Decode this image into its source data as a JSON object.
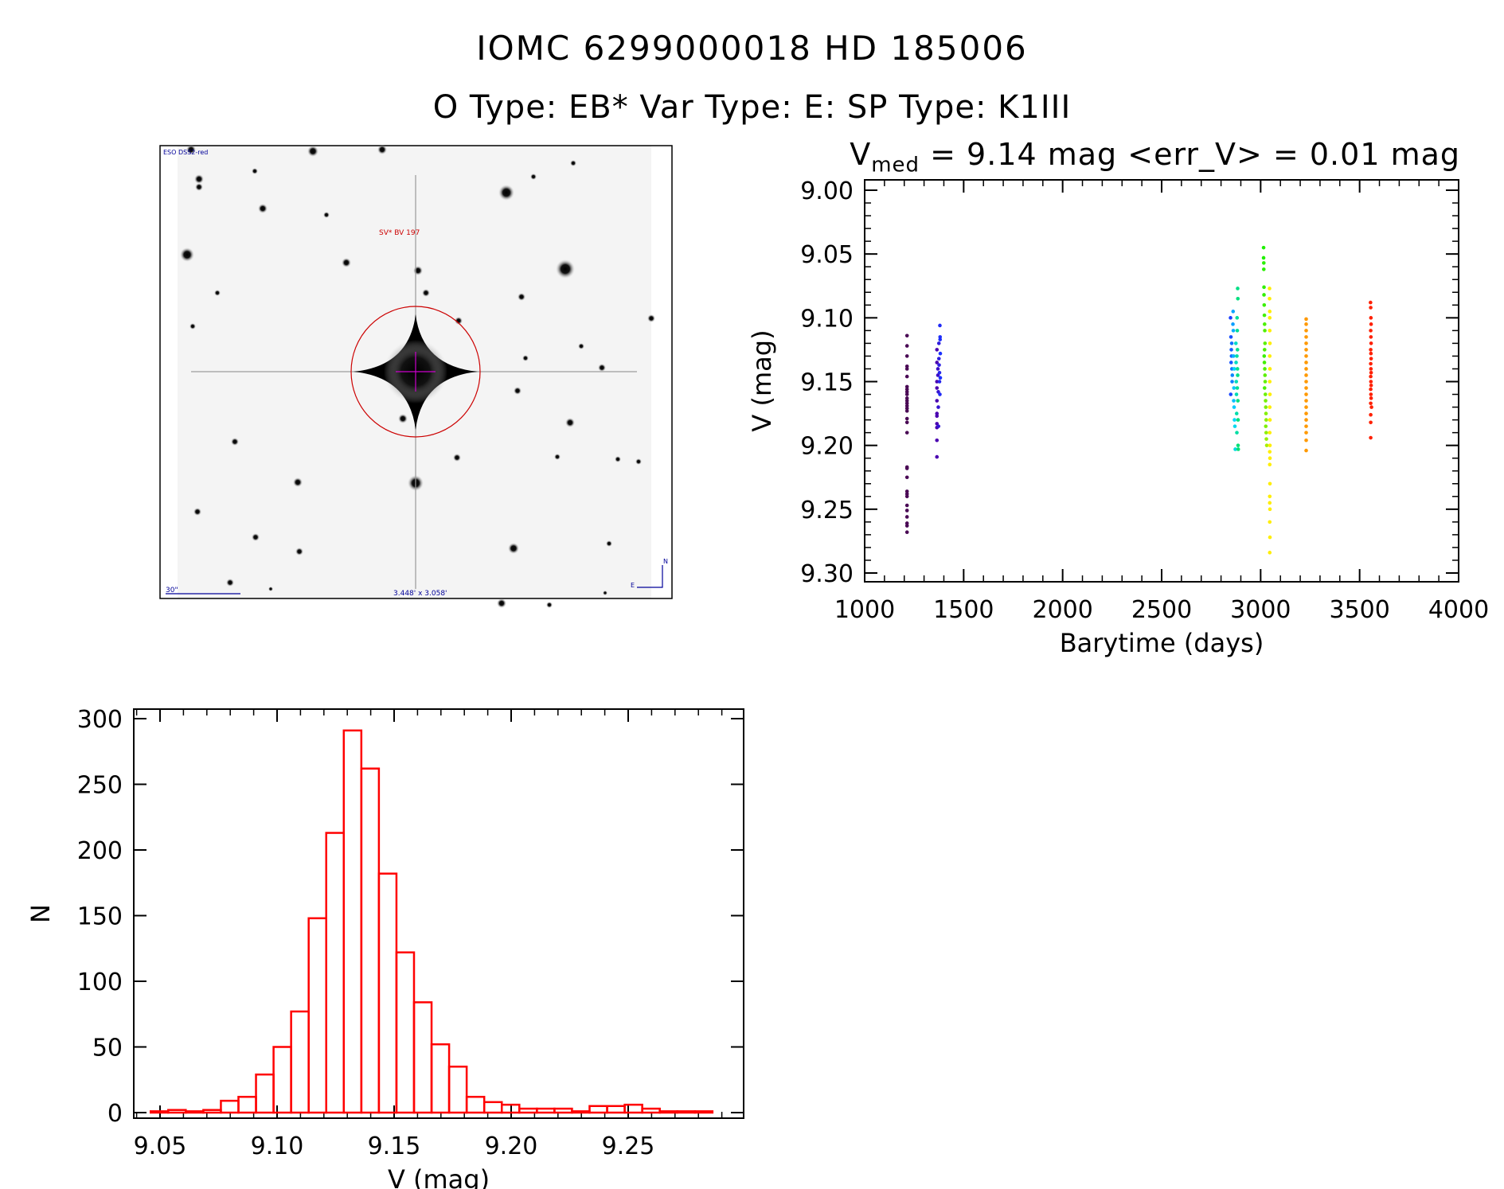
{
  "header": {
    "title": "IOMC 6299000018    HD 185006",
    "subtitle": "O Type: EB*  Var Type: E:   SP Type: K1III",
    "vmed_prefix": "V",
    "vmed_sub": "med",
    "vmed_rest": " = 9.14 mag <err_V> = 0.01 mag"
  },
  "image": {
    "survey_label": "ESO DSS2-red",
    "object_label": "SV* BV 197",
    "scale_label": "30\"",
    "size_label": "3.448' x 3.058'",
    "north_label": "N",
    "east_label": "E",
    "colors": {
      "marker": "#cc0000",
      "crosshair": "#cc00cc",
      "annotation": "#000099"
    }
  },
  "chart_data": [
    {
      "type": "scatter",
      "title": "",
      "xlabel": "Barytime (days)",
      "ylabel": "V (mag)",
      "xlim": [
        1000,
        4000
      ],
      "ylim": [
        9.3,
        9.0
      ],
      "y_inverted": true,
      "xticks": [
        1000,
        1500,
        2000,
        2500,
        3000,
        3500,
        4000
      ],
      "yticks": [
        "9.00",
        "9.05",
        "9.10",
        "9.15",
        "9.20",
        "9.25",
        "9.30"
      ],
      "grid": false,
      "series": [
        {
          "colors": [
            "#4a0a55",
            "#4a0a55"
          ],
          "points": [
            [
              1214,
              9.114
            ],
            [
              1214,
              9.122
            ],
            [
              1214,
              9.13
            ],
            [
              1214,
              9.138
            ],
            [
              1214,
              9.14
            ],
            [
              1214,
              9.146
            ],
            [
              1214,
              9.154
            ],
            [
              1214,
              9.156
            ],
            [
              1214,
              9.158
            ],
            [
              1214,
              9.16
            ],
            [
              1214,
              9.163
            ],
            [
              1214,
              9.165
            ],
            [
              1214,
              9.167
            ],
            [
              1214,
              9.169
            ],
            [
              1214,
              9.171
            ],
            [
              1214,
              9.173
            ],
            [
              1214,
              9.179
            ],
            [
              1214,
              9.182
            ],
            [
              1214,
              9.19
            ],
            [
              1214,
              9.217
            ],
            [
              1214,
              9.218
            ],
            [
              1214,
              9.225
            ],
            [
              1214,
              9.236
            ],
            [
              1214,
              9.238
            ],
            [
              1214,
              9.24
            ],
            [
              1214,
              9.247
            ],
            [
              1214,
              9.251
            ],
            [
              1214,
              9.256
            ],
            [
              1214,
              9.261
            ],
            [
              1214,
              9.263
            ],
            [
              1214,
              9.268
            ]
          ]
        },
        {
          "colors": [
            "#4a00b0",
            "#1a30ff"
          ],
          "points": [
            [
              1365,
              9.125
            ],
            [
              1365,
              9.135
            ],
            [
              1365,
              9.15
            ],
            [
              1365,
              9.155
            ],
            [
              1365,
              9.165
            ],
            [
              1365,
              9.175
            ],
            [
              1365,
              9.177
            ],
            [
              1365,
              9.183
            ],
            [
              1365,
              9.186
            ],
            [
              1365,
              9.196
            ],
            [
              1365,
              9.209
            ],
            [
              1370,
              9.14
            ],
            [
              1370,
              9.145
            ],
            [
              1372,
              9.158
            ],
            [
              1372,
              9.17
            ],
            [
              1373,
              9.185
            ],
            [
              1375,
              9.12
            ],
            [
              1375,
              9.132
            ],
            [
              1376,
              9.137
            ],
            [
              1378,
              9.143
            ],
            [
              1378,
              9.15
            ],
            [
              1380,
              9.16
            ],
            [
              1380,
              9.106
            ],
            [
              1381,
              9.115
            ],
            [
              1381,
              9.117
            ],
            [
              1382,
              9.128
            ],
            [
              1382,
              9.147
            ]
          ]
        },
        {
          "colors": [
            "#1a40ff",
            "#00d8ff",
            "#00e070"
          ],
          "points": [
            [
              2848,
              9.1
            ],
            [
              2849,
              9.16
            ],
            [
              2850,
              9.115
            ],
            [
              2851,
              9.135
            ],
            [
              2852,
              9.125
            ],
            [
              2853,
              9.13
            ],
            [
              2854,
              9.12
            ],
            [
              2855,
              9.14
            ],
            [
              2856,
              9.15
            ],
            [
              2857,
              9.145
            ],
            [
              2860,
              9.105
            ],
            [
              2861,
              9.095
            ],
            [
              2862,
              9.11
            ],
            [
              2863,
              9.13
            ],
            [
              2864,
              9.165
            ],
            [
              2865,
              9.155
            ],
            [
              2866,
              9.17
            ],
            [
              2867,
              9.14
            ],
            [
              2868,
              9.18
            ],
            [
              2870,
              9.185
            ],
            [
              2872,
              9.203
            ],
            [
              2875,
              9.12
            ],
            [
              2876,
              9.135
            ],
            [
              2877,
              9.15
            ],
            [
              2878,
              9.16
            ],
            [
              2879,
              9.175
            ],
            [
              2880,
              9.19
            ],
            [
              2880,
              9.13
            ],
            [
              2881,
              9.1
            ],
            [
              2882,
              9.11
            ],
            [
              2882,
              9.155
            ],
            [
              2883,
              9.125
            ],
            [
              2883,
              9.14
            ],
            [
              2884,
              9.145
            ],
            [
              2884,
              9.077
            ],
            [
              2885,
              9.165
            ],
            [
              2885,
              9.085
            ],
            [
              2886,
              9.18
            ],
            [
              2886,
              9.2
            ],
            [
              2887,
              9.203
            ]
          ]
        },
        {
          "colors": [
            "#20f000",
            "#a8f000"
          ],
          "points": [
            [
              3015,
              9.045
            ],
            [
              3015,
              9.053
            ],
            [
              3016,
              9.057
            ],
            [
              3016,
              9.062
            ],
            [
              3017,
              9.076
            ],
            [
              3017,
              9.082
            ],
            [
              3018,
              9.09
            ],
            [
              3019,
              9.098
            ],
            [
              3020,
              9.105
            ],
            [
              3021,
              9.11
            ],
            [
              3022,
              9.12
            ],
            [
              3020,
              9.125
            ],
            [
              3018,
              9.13
            ],
            [
              3019,
              9.135
            ],
            [
              3021,
              9.14
            ],
            [
              3022,
              9.145
            ],
            [
              3023,
              9.15
            ],
            [
              3020,
              9.155
            ],
            [
              3024,
              9.16
            ],
            [
              3025,
              9.165
            ],
            [
              3026,
              9.17
            ],
            [
              3027,
              9.175
            ],
            [
              3028,
              9.18
            ],
            [
              3026,
              9.185
            ],
            [
              3028,
              9.19
            ],
            [
              3029,
              9.195
            ],
            [
              3031,
              9.2
            ]
          ]
        },
        {
          "colors": [
            "#ffee00",
            "#ffee00"
          ],
          "points": [
            [
              3045,
              9.077
            ],
            [
              3045,
              9.085
            ],
            [
              3046,
              9.095
            ],
            [
              3046,
              9.1
            ],
            [
              3046,
              9.11
            ],
            [
              3047,
              9.12
            ],
            [
              3046,
              9.13
            ],
            [
              3047,
              9.14
            ],
            [
              3046,
              9.15
            ],
            [
              3047,
              9.16
            ],
            [
              3046,
              9.17
            ],
            [
              3047,
              9.18
            ],
            [
              3046,
              9.19
            ],
            [
              3047,
              9.2
            ],
            [
              3046,
              9.205
            ],
            [
              3047,
              9.21
            ],
            [
              3046,
              9.215
            ],
            [
              3047,
              9.23
            ],
            [
              3046,
              9.24
            ],
            [
              3046,
              9.245
            ],
            [
              3047,
              9.25
            ],
            [
              3046,
              9.26
            ],
            [
              3047,
              9.272
            ],
            [
              3046,
              9.284
            ]
          ]
        },
        {
          "colors": [
            "#ff9900",
            "#ff9900"
          ],
          "points": [
            [
              3230,
              9.101
            ],
            [
              3230,
              9.105
            ],
            [
              3230,
              9.11
            ],
            [
              3230,
              9.115
            ],
            [
              3230,
              9.12
            ],
            [
              3230,
              9.125
            ],
            [
              3230,
              9.13
            ],
            [
              3230,
              9.135
            ],
            [
              3230,
              9.14
            ],
            [
              3230,
              9.145
            ],
            [
              3230,
              9.15
            ],
            [
              3230,
              9.155
            ],
            [
              3230,
              9.16
            ],
            [
              3230,
              9.165
            ],
            [
              3230,
              9.17
            ],
            [
              3230,
              9.175
            ],
            [
              3230,
              9.18
            ],
            [
              3230,
              9.185
            ],
            [
              3230,
              9.19
            ],
            [
              3230,
              9.196
            ],
            [
              3230,
              9.204
            ]
          ]
        },
        {
          "colors": [
            "#ff2000",
            "#ff2000"
          ],
          "points": [
            [
              3555,
              9.088
            ],
            [
              3556,
              9.092
            ],
            [
              3557,
              9.1
            ],
            [
              3558,
              9.105
            ],
            [
              3556,
              9.11
            ],
            [
              3557,
              9.115
            ],
            [
              3558,
              9.12
            ],
            [
              3556,
              9.125
            ],
            [
              3557,
              9.128
            ],
            [
              3558,
              9.132
            ],
            [
              3556,
              9.136
            ],
            [
              3557,
              9.14
            ],
            [
              3558,
              9.143
            ],
            [
              3556,
              9.146
            ],
            [
              3557,
              9.15
            ],
            [
              3558,
              9.153
            ],
            [
              3556,
              9.156
            ],
            [
              3557,
              9.16
            ],
            [
              3558,
              9.163
            ],
            [
              3556,
              9.167
            ],
            [
              3560,
              9.17
            ],
            [
              3556,
              9.176
            ],
            [
              3556,
              9.182
            ],
            [
              3556,
              9.194
            ]
          ]
        }
      ]
    },
    {
      "type": "bar",
      "style": "step-histogram",
      "title": "",
      "xlabel": "V (mag)",
      "ylabel": "N",
      "xlim": [
        9.04,
        9.3
      ],
      "ylim": [
        0,
        300
      ],
      "xticks": [
        "9.05",
        "9.10",
        "9.15",
        "9.20",
        "9.25"
      ],
      "yticks": [
        "0",
        "50",
        "100",
        "150",
        "200",
        "250",
        "300"
      ],
      "grid": false,
      "color": "#ff0000",
      "bin_start": 9.046,
      "bin_width": 0.0075,
      "values": [
        1,
        2,
        1,
        2,
        9,
        12,
        29,
        50,
        77,
        148,
        213,
        291,
        262,
        182,
        122,
        84,
        52,
        35,
        12,
        8,
        6,
        3,
        3,
        3,
        1,
        5,
        5,
        6,
        3,
        1,
        1,
        1
      ]
    }
  ]
}
